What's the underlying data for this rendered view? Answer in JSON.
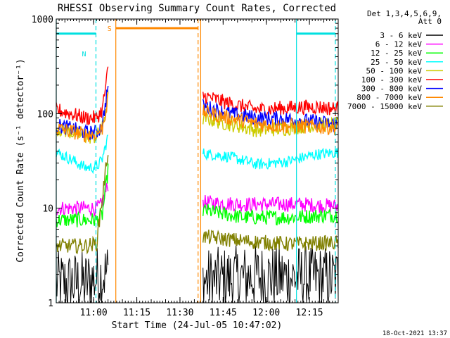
{
  "chart_data": {
    "type": "line",
    "title": "RHESSI Observing Summary Count Rates, Corrected",
    "xlabel": "Start Time (24-Jul-05 10:47:02)",
    "ylabel": "Corrected Count Rate (s⁻¹ detector⁻¹)",
    "yscale": "log",
    "ylim": [
      1,
      1000
    ],
    "xlim_minutes": [
      0,
      98
    ],
    "x_ticks": [
      {
        "label": "11:00",
        "minute": 13
      },
      {
        "label": "11:15",
        "minute": 28
      },
      {
        "label": "11:30",
        "minute": 43
      },
      {
        "label": "11:45",
        "minute": 58
      },
      {
        "label": "12:00",
        "minute": 73
      },
      {
        "label": "12:15",
        "minute": 88
      }
    ],
    "y_ticks": [
      {
        "label": "1",
        "value": 1
      },
      {
        "label": "10",
        "value": 10
      },
      {
        "label": "100",
        "value": 100
      },
      {
        "label": "1000",
        "value": 1000
      }
    ],
    "legend": {
      "position": "right",
      "header": [
        "Det 1,3,4,5,6,9,",
        "Att 0"
      ]
    },
    "flags": {
      "S_label": "S",
      "N_label": "N"
    },
    "markers": {
      "solid": [
        {
          "color": "#00e0e0",
          "minute": 0
        },
        {
          "color": "#ff8800",
          "minute": 20.7
        },
        {
          "color": "#ff8800",
          "minute": 50.2
        },
        {
          "color": "#00e0e0",
          "minute": 83.5
        }
      ],
      "dashed": [
        {
          "color": "#00e0e0",
          "minute": 13.8
        },
        {
          "color": "#ff8800",
          "minute": 49.3
        },
        {
          "color": "#00e0e0",
          "minute": 97
        }
      ]
    },
    "segments": [
      {
        "color": "#00e0e0",
        "start": 0,
        "end": 13.8,
        "value": 700
      },
      {
        "color": "#ff8800",
        "start": 20.7,
        "end": 49.3,
        "value": 800
      },
      {
        "color": "#00e0e0",
        "start": 83.5,
        "end": 97,
        "value": 700
      }
    ],
    "gaps": [
      [
        18,
        51
      ]
    ],
    "series": [
      {
        "name": "3 - 6 keV",
        "color": "#000000",
        "points": [
          [
            0,
            1.6
          ],
          [
            10,
            1.6
          ],
          [
            18,
            2.1
          ],
          [
            51,
            1.7
          ],
          [
            70,
            1.9
          ],
          [
            98,
            1.8
          ]
        ]
      },
      {
        "name": "6 - 12 keV",
        "color": "#ff00ff",
        "points": [
          [
            0,
            10
          ],
          [
            14,
            10
          ],
          [
            16,
            11
          ],
          [
            18,
            18
          ],
          [
            51,
            11.5
          ],
          [
            65,
            11
          ],
          [
            75,
            11
          ],
          [
            85,
            11
          ],
          [
            98,
            10.5
          ]
        ]
      },
      {
        "name": "12 - 25 keV",
        "color": "#00ff00",
        "points": [
          [
            0,
            7.5
          ],
          [
            14,
            7.5
          ],
          [
            16,
            8.5
          ],
          [
            18,
            25
          ],
          [
            51,
            9.5
          ],
          [
            65,
            8
          ],
          [
            80,
            8
          ],
          [
            98,
            8.5
          ]
        ]
      },
      {
        "name": "25 - 50 keV",
        "color": "#00ffff",
        "points": [
          [
            0,
            39
          ],
          [
            5,
            33
          ],
          [
            10,
            27
          ],
          [
            14,
            27
          ],
          [
            16,
            33
          ],
          [
            18,
            58
          ],
          [
            51,
            38
          ],
          [
            60,
            35
          ],
          [
            70,
            29
          ],
          [
            80,
            31
          ],
          [
            90,
            37
          ],
          [
            98,
            39
          ]
        ]
      },
      {
        "name": "50 - 100 keV",
        "color": "#cccc00",
        "points": [
          [
            0,
            70
          ],
          [
            5,
            64
          ],
          [
            10,
            57
          ],
          [
            14,
            57
          ],
          [
            16,
            70
          ],
          [
            18,
            150
          ],
          [
            51,
            90
          ],
          [
            60,
            78
          ],
          [
            70,
            67
          ],
          [
            80,
            70
          ],
          [
            90,
            76
          ],
          [
            98,
            76
          ]
        ]
      },
      {
        "name": "100 - 300 keV",
        "color": "#ff0000",
        "points": [
          [
            0,
            110
          ],
          [
            5,
            100
          ],
          [
            10,
            90
          ],
          [
            14,
            90
          ],
          [
            16,
            110
          ],
          [
            18,
            290
          ],
          [
            51,
            155
          ],
          [
            60,
            128
          ],
          [
            70,
            110
          ],
          [
            80,
            115
          ],
          [
            90,
            118
          ],
          [
            98,
            112
          ]
        ]
      },
      {
        "name": "300 - 800 keV",
        "color": "#0000ff",
        "points": [
          [
            0,
            75
          ],
          [
            5,
            70
          ],
          [
            10,
            63
          ],
          [
            14,
            63
          ],
          [
            16,
            75
          ],
          [
            18,
            200
          ],
          [
            51,
            120
          ],
          [
            60,
            100
          ],
          [
            70,
            90
          ],
          [
            80,
            88
          ],
          [
            90,
            82
          ],
          [
            98,
            76
          ]
        ]
      },
      {
        "name": "800 - 7000 keV",
        "color": "#ff8800",
        "points": [
          [
            0,
            70
          ],
          [
            5,
            65
          ],
          [
            10,
            60
          ],
          [
            14,
            60
          ],
          [
            16,
            70
          ],
          [
            18,
            140
          ],
          [
            51,
            105
          ],
          [
            60,
            90
          ],
          [
            70,
            78
          ],
          [
            80,
            74
          ],
          [
            90,
            73
          ],
          [
            98,
            71
          ]
        ]
      },
      {
        "name": "7000 - 15000 keV",
        "color": "#808000",
        "points": [
          [
            0,
            4
          ],
          [
            10,
            4
          ],
          [
            14,
            4.2
          ],
          [
            18,
            40
          ],
          [
            51,
            5
          ],
          [
            65,
            4.5
          ],
          [
            80,
            4.2
          ],
          [
            98,
            4.3
          ]
        ]
      }
    ],
    "footer": "18-Oct-2021 13:37"
  }
}
